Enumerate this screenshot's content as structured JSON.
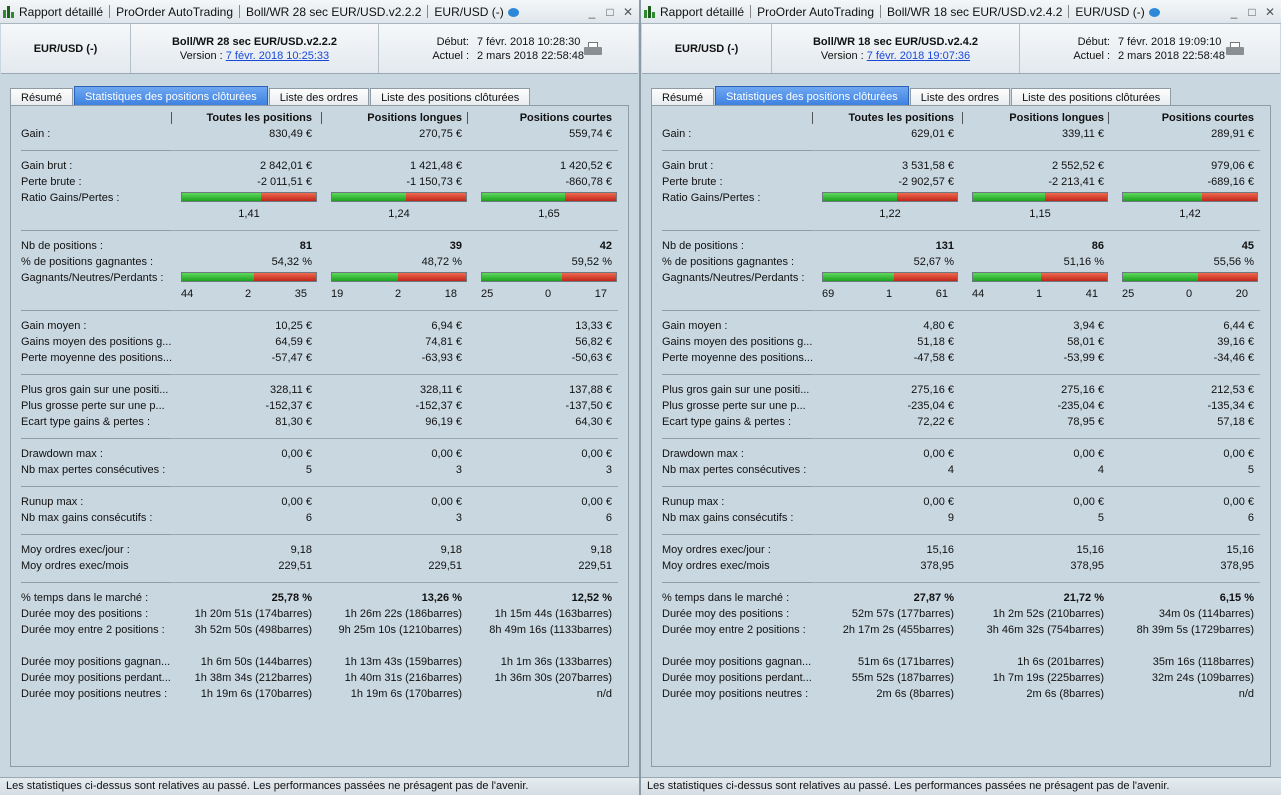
{
  "panes": [
    {
      "titlebar": [
        "Rapport détaillé",
        "ProOrder AutoTrading",
        "Boll/WR 28 sec EUR/USD.v2.2.2",
        "EUR/USD (-)"
      ],
      "symbol": "EUR/USD (-)",
      "strategy_name": "Boll/WR 28 sec EUR/USD.v2.2.2",
      "version_label": "Version :",
      "version_link": "7 févr. 2018 10:25:33",
      "debut_label": "Début:",
      "debut_value": "7 févr. 2018 10:28:30",
      "actuel_label": "Actuel :",
      "actuel_value": "2 mars 2018 22:58:48",
      "tabs": [
        "Résumé",
        "Statistiques des positions clôturées",
        "Liste des ordres",
        "Liste des positions clôturées"
      ],
      "active_tab": 1,
      "columns": [
        "Toutes les positions",
        "Positions longues",
        "Positions courtes"
      ],
      "gain": [
        "Gain :",
        "830,49 €",
        "270,75 €",
        "559,74 €"
      ],
      "gain_brut": [
        "Gain brut :",
        "2 842,01 €",
        "1 421,48 €",
        "1 420,52 €"
      ],
      "perte_brute": [
        "Perte brute :",
        "-2 011,51 €",
        "-1 150,73 €",
        "-860,78 €"
      ],
      "ratio_label": "Ratio Gains/Pertes :",
      "ratio_values": [
        "1,41",
        "1,24",
        "1,65"
      ],
      "ratio_fill": [
        0.59,
        0.55,
        0.62
      ],
      "nb_positions": [
        "Nb de positions :",
        "81",
        "39",
        "42"
      ],
      "pct_gagnantes": [
        "% de positions gagnantes :",
        "54,32 %",
        "48,72 %",
        "59,52 %"
      ],
      "gnp_label": "Gagnants/Neutres/Perdants :",
      "gnp": [
        [
          "44",
          "2",
          "35"
        ],
        [
          "19",
          "2",
          "18"
        ],
        [
          "25",
          "0",
          "17"
        ]
      ],
      "gnp_fill": [
        0.54,
        0.49,
        0.6
      ],
      "gain_moyen": [
        "Gain moyen :",
        "10,25 €",
        "6,94 €",
        "13,33 €"
      ],
      "gains_moyen_pos": [
        "Gains moyen des positions g...",
        "64,59 €",
        "74,81 €",
        "56,82 €"
      ],
      "perte_moyenne": [
        "Perte moyenne des positions...",
        "-57,47 €",
        "-63,93 €",
        "-50,63 €"
      ],
      "plus_gros_gain": [
        "Plus gros gain sur une positi...",
        "328,11 €",
        "328,11 €",
        "137,88 €"
      ],
      "plus_grosse_perte": [
        "Plus grosse perte sur une p...",
        "-152,37 €",
        "-152,37 €",
        "-137,50 €"
      ],
      "ecart_type": [
        "Ecart type gains & pertes :",
        "81,30 €",
        "96,19 €",
        "64,30 €"
      ],
      "drawdown": [
        "Drawdown max :",
        "0,00 €",
        "0,00 €",
        "0,00 €"
      ],
      "nb_max_pertes": [
        "Nb max pertes consécutives :",
        "5",
        "3",
        "3"
      ],
      "runup": [
        "Runup max :",
        "0,00 €",
        "0,00 €",
        "0,00 €"
      ],
      "nb_max_gains": [
        "Nb max gains consécutifs :",
        "6",
        "3",
        "6"
      ],
      "moy_jour": [
        "Moy ordres exec/jour :",
        "9,18",
        "9,18",
        "9,18"
      ],
      "moy_mois": [
        "Moy ordres exec/mois",
        "229,51",
        "229,51",
        "229,51"
      ],
      "pct_temps": [
        "% temps dans le marché :",
        "25,78 %",
        "13,26 %",
        "12,52 %"
      ],
      "duree_moy": [
        "Durée moy des positions :",
        "1h 20m 51s (174barres)",
        "1h 26m 22s (186barres)",
        "1h 15m 44s (163barres)"
      ],
      "duree_entre": [
        "Durée moy entre 2 positions :",
        "3h 52m 50s (498barres)",
        "9h 25m 10s (1210barres)",
        "8h 49m 16s (1133barres)"
      ],
      "duree_gagn": [
        "Durée moy positions gagnan...",
        "1h 6m 50s (144barres)",
        "1h 13m 43s (159barres)",
        "1h 1m 36s (133barres)"
      ],
      "duree_perd": [
        "Durée moy positions perdant...",
        "1h 38m 34s (212barres)",
        "1h 40m 31s (216barres)",
        "1h 36m 30s (207barres)"
      ],
      "duree_neutres": [
        "Durée moy positions neutres :",
        "1h 19m 6s (170barres)",
        "1h 19m 6s (170barres)",
        "n/d"
      ],
      "footer": "Les statistiques ci-dessus sont relatives au passé. Les performances passées ne présagent pas de l'avenir."
    },
    {
      "titlebar": [
        "Rapport détaillé",
        "ProOrder AutoTrading",
        "Boll/WR 18 sec EUR/USD.v2.4.2",
        "EUR/USD (-)"
      ],
      "symbol": "EUR/USD (-)",
      "strategy_name": "Boll/WR 18 sec EUR/USD.v2.4.2",
      "version_label": "Version :",
      "version_link": "7 févr. 2018 19:07:36",
      "debut_label": "Début:",
      "debut_value": "7 févr. 2018 19:09:10",
      "actuel_label": "Actuel :",
      "actuel_value": "2 mars 2018 22:58:48",
      "tabs": [
        "Résumé",
        "Statistiques des positions clôturées",
        "Liste des ordres",
        "Liste des positions clôturées"
      ],
      "active_tab": 1,
      "columns": [
        "Toutes les positions",
        "Positions longues",
        "Positions courtes"
      ],
      "gain": [
        "Gain :",
        "629,01 €",
        "339,11 €",
        "289,91 €"
      ],
      "gain_brut": [
        "Gain brut :",
        "3 531,58 €",
        "2 552,52 €",
        "979,06 €"
      ],
      "perte_brute": [
        "Perte brute :",
        "-2 902,57 €",
        "-2 213,41 €",
        "-689,16 €"
      ],
      "ratio_label": "Ratio Gains/Pertes :",
      "ratio_values": [
        "1,22",
        "1,15",
        "1,42"
      ],
      "ratio_fill": [
        0.55,
        0.54,
        0.59
      ],
      "nb_positions": [
        "Nb de positions :",
        "131",
        "86",
        "45"
      ],
      "pct_gagnantes": [
        "% de positions gagnantes :",
        "52,67 %",
        "51,16 %",
        "55,56 %"
      ],
      "gnp_label": "Gagnants/Neutres/Perdants :",
      "gnp": [
        [
          "69",
          "1",
          "61"
        ],
        [
          "44",
          "1",
          "41"
        ],
        [
          "25",
          "0",
          "20"
        ]
      ],
      "gnp_fill": [
        0.53,
        0.51,
        0.56
      ],
      "gain_moyen": [
        "Gain moyen :",
        "4,80 €",
        "3,94 €",
        "6,44 €"
      ],
      "gains_moyen_pos": [
        "Gains moyen des positions g...",
        "51,18 €",
        "58,01 €",
        "39,16 €"
      ],
      "perte_moyenne": [
        "Perte moyenne des positions...",
        "-47,58 €",
        "-53,99 €",
        "-34,46 €"
      ],
      "plus_gros_gain": [
        "Plus gros gain sur une positi...",
        "275,16 €",
        "275,16 €",
        "212,53 €"
      ],
      "plus_grosse_perte": [
        "Plus grosse perte sur une p...",
        "-235,04 €",
        "-235,04 €",
        "-135,34 €"
      ],
      "ecart_type": [
        "Ecart type gains & pertes :",
        "72,22 €",
        "78,95 €",
        "57,18 €"
      ],
      "drawdown": [
        "Drawdown max :",
        "0,00 €",
        "0,00 €",
        "0,00 €"
      ],
      "nb_max_pertes": [
        "Nb max pertes consécutives :",
        "4",
        "4",
        "5"
      ],
      "runup": [
        "Runup max :",
        "0,00 €",
        "0,00 €",
        "0,00 €"
      ],
      "nb_max_gains": [
        "Nb max gains consécutifs :",
        "9",
        "5",
        "6"
      ],
      "moy_jour": [
        "Moy ordres exec/jour :",
        "15,16",
        "15,16",
        "15,16"
      ],
      "moy_mois": [
        "Moy ordres exec/mois",
        "378,95",
        "378,95",
        "378,95"
      ],
      "pct_temps": [
        "% temps dans le marché :",
        "27,87 %",
        "21,72 %",
        "6,15 %"
      ],
      "duree_moy": [
        "Durée moy des positions :",
        "52m 57s (177barres)",
        "1h 2m 52s (210barres)",
        "34m 0s (114barres)"
      ],
      "duree_entre": [
        "Durée moy entre 2 positions :",
        "2h 17m 2s (455barres)",
        "3h 46m 32s (754barres)",
        "8h 39m 5s (1729barres)"
      ],
      "duree_gagn": [
        "Durée moy positions gagnan...",
        "51m 6s (171barres)",
        "1h 6s (201barres)",
        "35m 16s (118barres)"
      ],
      "duree_perd": [
        "Durée moy positions perdant...",
        "55m 52s (187barres)",
        "1h 7m 19s (225barres)",
        "32m 24s (109barres)"
      ],
      "duree_neutres": [
        "Durée moy positions neutres :",
        "2m 6s (8barres)",
        "2m 6s (8barres)",
        "n/d"
      ],
      "footer": "Les statistiques ci-dessus sont relatives au passé. Les performances passées ne présagent pas de l'avenir."
    }
  ]
}
